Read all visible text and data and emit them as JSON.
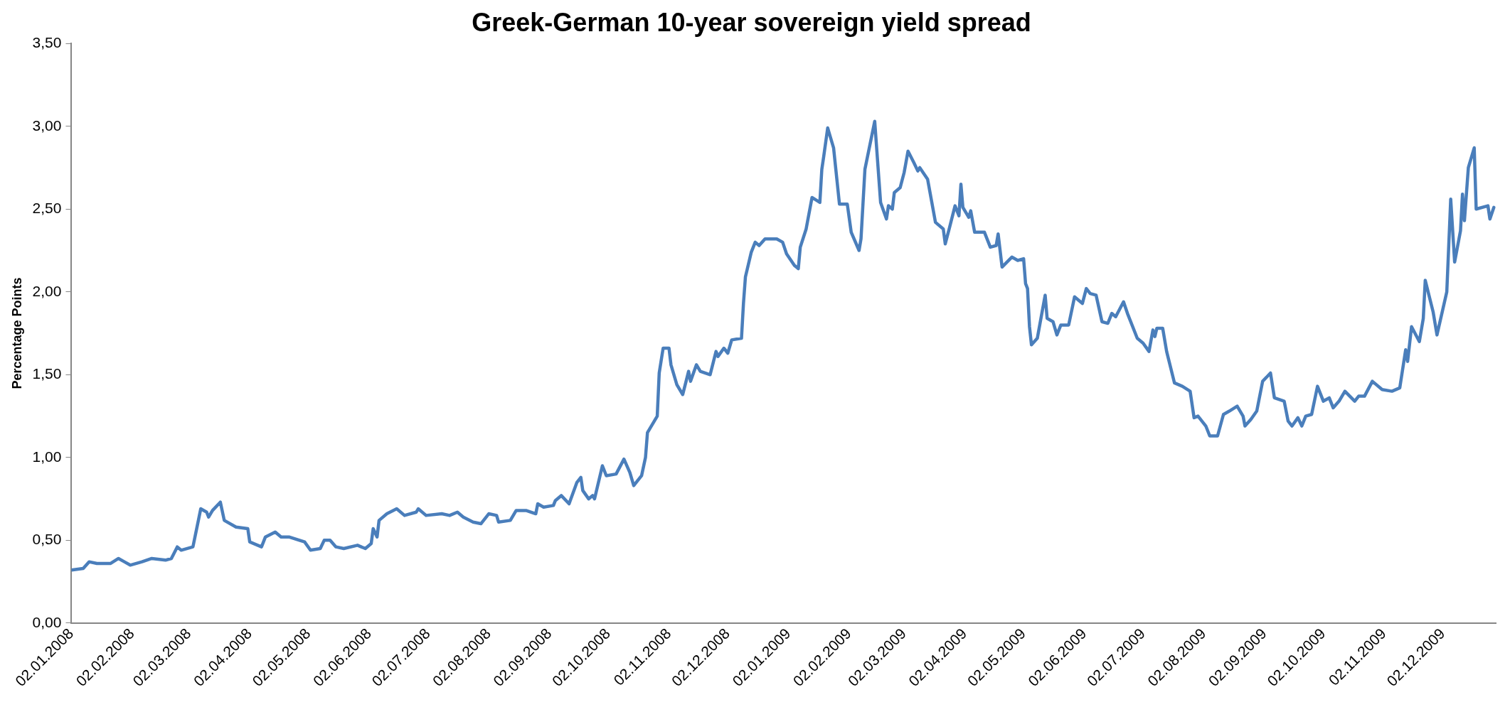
{
  "chart_data": {
    "type": "line",
    "title": "Greek-German 10-year sovereign yield spread",
    "ylabel": "Percentage Points",
    "xlim": [
      "2008-01-02",
      "2009-12-29"
    ],
    "ylim": [
      0,
      3.5
    ],
    "yticks": [
      {
        "value": 0,
        "label": "0,00"
      },
      {
        "value": 0.5,
        "label": "0,50"
      },
      {
        "value": 1,
        "label": "1,00"
      },
      {
        "value": 1.5,
        "label": "1,50"
      },
      {
        "value": 2,
        "label": "2,00"
      },
      {
        "value": 2.5,
        "label": "2,50"
      },
      {
        "value": 3,
        "label": "3,00"
      },
      {
        "value": 3.5,
        "label": "3,50"
      }
    ],
    "xticks": [
      {
        "value": "2008-01-02",
        "label": "02.01.2008"
      },
      {
        "value": "2008-02-02",
        "label": "02.02.2008"
      },
      {
        "value": "2008-03-02",
        "label": "02.03.2008"
      },
      {
        "value": "2008-04-02",
        "label": "02.04.2008"
      },
      {
        "value": "2008-05-02",
        "label": "02.05.2008"
      },
      {
        "value": "2008-06-02",
        "label": "02.06.2008"
      },
      {
        "value": "2008-07-02",
        "label": "02.07.2008"
      },
      {
        "value": "2008-08-02",
        "label": "02.08.2008"
      },
      {
        "value": "2008-09-02",
        "label": "02.09.2008"
      },
      {
        "value": "2008-10-02",
        "label": "02.10.2008"
      },
      {
        "value": "2008-11-02",
        "label": "02.11.2008"
      },
      {
        "value": "2008-12-02",
        "label": "02.12.2008"
      },
      {
        "value": "2009-01-02",
        "label": "02.01.2009"
      },
      {
        "value": "2009-02-02",
        "label": "02.02.2009"
      },
      {
        "value": "2009-03-02",
        "label": "02.03.2009"
      },
      {
        "value": "2009-04-02",
        "label": "02.04.2009"
      },
      {
        "value": "2009-05-02",
        "label": "02.05.2009"
      },
      {
        "value": "2009-06-02",
        "label": "02.06.2009"
      },
      {
        "value": "2009-07-02",
        "label": "02.07.2009"
      },
      {
        "value": "2009-08-02",
        "label": "02.08.2009"
      },
      {
        "value": "2009-09-02",
        "label": "02.09.2009"
      },
      {
        "value": "2009-10-02",
        "label": "02.10.2009"
      },
      {
        "value": "2009-11-02",
        "label": "02.11.2009"
      },
      {
        "value": "2009-12-02",
        "label": "02.12.2009"
      }
    ],
    "grid": false,
    "legend": false,
    "marker": "none",
    "line_style": "solid",
    "x": [
      "2008-01-02",
      "2008-01-08",
      "2008-01-11",
      "2008-01-15",
      "2008-01-22",
      "2008-01-26",
      "2008-01-29",
      "2008-02-01",
      "2008-02-07",
      "2008-02-12",
      "2008-02-19",
      "2008-02-22",
      "2008-02-25",
      "2008-02-27",
      "2008-03-04",
      "2008-03-08",
      "2008-03-11",
      "2008-03-12",
      "2008-03-14",
      "2008-03-18",
      "2008-03-20",
      "2008-03-26",
      "2008-04-01",
      "2008-04-02",
      "2008-04-08",
      "2008-04-10",
      "2008-04-15",
      "2008-04-18",
      "2008-04-22",
      "2008-04-30",
      "2008-05-03",
      "2008-05-08",
      "2008-05-10",
      "2008-05-13",
      "2008-05-16",
      "2008-05-20",
      "2008-05-27",
      "2008-05-31",
      "2008-06-03",
      "2008-06-04",
      "2008-06-06",
      "2008-06-07",
      "2008-06-11",
      "2008-06-16",
      "2008-06-20",
      "2008-06-26",
      "2008-06-27",
      "2008-07-01",
      "2008-07-09",
      "2008-07-13",
      "2008-07-17",
      "2008-07-20",
      "2008-07-25",
      "2008-07-29",
      "2008-08-02",
      "2008-08-06",
      "2008-08-07",
      "2008-08-13",
      "2008-08-16",
      "2008-08-21",
      "2008-08-26",
      "2008-08-27",
      "2008-08-30",
      "2008-09-04",
      "2008-09-05",
      "2008-09-08",
      "2008-09-12",
      "2008-09-16",
      "2008-09-18",
      "2008-09-19",
      "2008-09-22",
      "2008-09-24",
      "2008-09-25",
      "2008-09-29",
      "2008-10-01",
      "2008-10-06",
      "2008-10-10",
      "2008-10-13",
      "2008-10-15",
      "2008-10-19",
      "2008-10-21",
      "2008-10-22",
      "2008-10-27",
      "2008-10-28",
      "2008-10-30",
      "2008-11-02",
      "2008-11-03",
      "2008-11-06",
      "2008-11-09",
      "2008-11-12",
      "2008-11-13",
      "2008-11-16",
      "2008-11-18",
      "2008-11-23",
      "2008-11-26",
      "2008-11-27",
      "2008-11-30",
      "2008-12-02",
      "2008-12-04",
      "2008-12-09",
      "2008-12-10",
      "2008-12-11",
      "2008-12-14",
      "2008-12-16",
      "2008-12-18",
      "2008-12-21",
      "2008-12-27",
      "2008-12-30",
      "2009-01-01",
      "2009-01-05",
      "2009-01-07",
      "2009-01-08",
      "2009-01-11",
      "2009-01-14",
      "2009-01-18",
      "2009-01-19",
      "2009-01-20",
      "2009-01-22",
      "2009-01-25",
      "2009-01-28",
      "2009-02-01",
      "2009-02-03",
      "2009-02-07",
      "2009-02-08",
      "2009-02-10",
      "2009-02-15",
      "2009-02-18",
      "2009-02-21",
      "2009-02-22",
      "2009-02-24",
      "2009-02-25",
      "2009-02-28",
      "2009-03-02",
      "2009-03-04",
      "2009-03-07",
      "2009-03-09",
      "2009-03-10",
      "2009-03-14",
      "2009-03-16",
      "2009-03-18",
      "2009-03-22",
      "2009-03-23",
      "2009-03-25",
      "2009-03-28",
      "2009-03-30",
      "2009-03-31",
      "2009-04-01",
      "2009-04-04",
      "2009-04-05",
      "2009-04-07",
      "2009-04-12",
      "2009-04-15",
      "2009-04-18",
      "2009-04-19",
      "2009-04-21",
      "2009-04-26",
      "2009-04-29",
      "2009-05-02",
      "2009-05-03",
      "2009-05-04",
      "2009-05-05",
      "2009-05-06",
      "2009-05-09",
      "2009-05-13",
      "2009-05-14",
      "2009-05-17",
      "2009-05-19",
      "2009-05-21",
      "2009-05-25",
      "2009-05-28",
      "2009-06-01",
      "2009-06-03",
      "2009-06-05",
      "2009-06-08",
      "2009-06-11",
      "2009-06-14",
      "2009-06-16",
      "2009-06-18",
      "2009-06-22",
      "2009-06-24",
      "2009-06-29",
      "2009-07-02",
      "2009-07-05",
      "2009-07-07",
      "2009-07-08",
      "2009-07-09",
      "2009-07-12",
      "2009-07-14",
      "2009-07-18",
      "2009-07-22",
      "2009-07-26",
      "2009-07-28",
      "2009-07-30",
      "2009-08-03",
      "2009-08-05",
      "2009-08-09",
      "2009-08-12",
      "2009-08-15",
      "2009-08-19",
      "2009-08-22",
      "2009-08-23",
      "2009-08-26",
      "2009-08-29",
      "2009-09-01",
      "2009-09-05",
      "2009-09-07",
      "2009-09-12",
      "2009-09-14",
      "2009-09-16",
      "2009-09-19",
      "2009-09-21",
      "2009-09-23",
      "2009-09-26",
      "2009-09-29",
      "2009-10-02",
      "2009-10-05",
      "2009-10-07",
      "2009-10-10",
      "2009-10-13",
      "2009-10-18",
      "2009-10-20",
      "2009-10-23",
      "2009-10-27",
      "2009-11-01",
      "2009-11-06",
      "2009-11-10",
      "2009-11-13",
      "2009-11-14",
      "2009-11-16",
      "2009-11-20",
      "2009-11-22",
      "2009-11-23",
      "2009-11-27",
      "2009-11-29",
      "2009-12-04",
      "2009-12-06",
      "2009-12-08",
      "2009-12-11",
      "2009-12-12",
      "2009-12-13",
      "2009-12-15",
      "2009-12-18",
      "2009-12-19",
      "2009-12-25",
      "2009-12-26",
      "2009-12-28"
    ],
    "series": [
      {
        "color": "#4a7ebb",
        "values": [
          0.32,
          0.33,
          0.37,
          0.36,
          0.36,
          0.39,
          0.37,
          0.35,
          0.37,
          0.39,
          0.38,
          0.39,
          0.46,
          0.44,
          0.46,
          0.69,
          0.67,
          0.64,
          0.68,
          0.73,
          0.62,
          0.58,
          0.57,
          0.49,
          0.46,
          0.52,
          0.55,
          0.52,
          0.52,
          0.49,
          0.44,
          0.45,
          0.5,
          0.5,
          0.46,
          0.45,
          0.47,
          0.45,
          0.48,
          0.57,
          0.52,
          0.62,
          0.66,
          0.69,
          0.65,
          0.67,
          0.69,
          0.65,
          0.66,
          0.65,
          0.67,
          0.64,
          0.61,
          0.6,
          0.66,
          0.65,
          0.61,
          0.62,
          0.68,
          0.68,
          0.66,
          0.72,
          0.7,
          0.71,
          0.74,
          0.77,
          0.72,
          0.85,
          0.88,
          0.8,
          0.75,
          0.77,
          0.75,
          0.95,
          0.89,
          0.9,
          0.99,
          0.91,
          0.83,
          0.89,
          1.0,
          1.15,
          1.25,
          1.51,
          1.66,
          1.66,
          1.56,
          1.44,
          1.38,
          1.52,
          1.46,
          1.56,
          1.52,
          1.5,
          1.64,
          1.61,
          1.66,
          1.63,
          1.71,
          1.72,
          1.93,
          2.09,
          2.24,
          2.3,
          2.28,
          2.32,
          2.32,
          2.3,
          2.23,
          2.16,
          2.14,
          2.27,
          2.38,
          2.57,
          2.54,
          2.74,
          2.82,
          2.99,
          2.87,
          2.53,
          2.53,
          2.36,
          2.25,
          2.32,
          2.74,
          3.03,
          2.54,
          2.44,
          2.52,
          2.5,
          2.6,
          2.63,
          2.72,
          2.85,
          2.78,
          2.73,
          2.75,
          2.68,
          2.55,
          2.42,
          2.38,
          2.29,
          2.38,
          2.52,
          2.46,
          2.65,
          2.51,
          2.45,
          2.49,
          2.36,
          2.36,
          2.27,
          2.28,
          2.35,
          2.15,
          2.21,
          2.19,
          2.2,
          2.05,
          2.02,
          1.79,
          1.68,
          1.72,
          1.98,
          1.84,
          1.82,
          1.74,
          1.8,
          1.8,
          1.97,
          1.93,
          2.02,
          1.99,
          1.98,
          1.82,
          1.81,
          1.87,
          1.85,
          1.94,
          1.87,
          1.72,
          1.69,
          1.64,
          1.77,
          1.73,
          1.78,
          1.78,
          1.64,
          1.45,
          1.43,
          1.4,
          1.24,
          1.25,
          1.19,
          1.13,
          1.13,
          1.26,
          1.28,
          1.31,
          1.25,
          1.19,
          1.23,
          1.28,
          1.46,
          1.51,
          1.36,
          1.34,
          1.22,
          1.19,
          1.24,
          1.19,
          1.25,
          1.26,
          1.43,
          1.34,
          1.36,
          1.3,
          1.34,
          1.4,
          1.34,
          1.37,
          1.37,
          1.46,
          1.41,
          1.4,
          1.42,
          1.65,
          1.58,
          1.79,
          1.7,
          1.84,
          2.07,
          1.88,
          1.74,
          2.0,
          2.56,
          2.18,
          2.37,
          2.59,
          2.43,
          2.75,
          2.87,
          2.5,
          2.52,
          2.44,
          2.51
        ]
      }
    ]
  }
}
